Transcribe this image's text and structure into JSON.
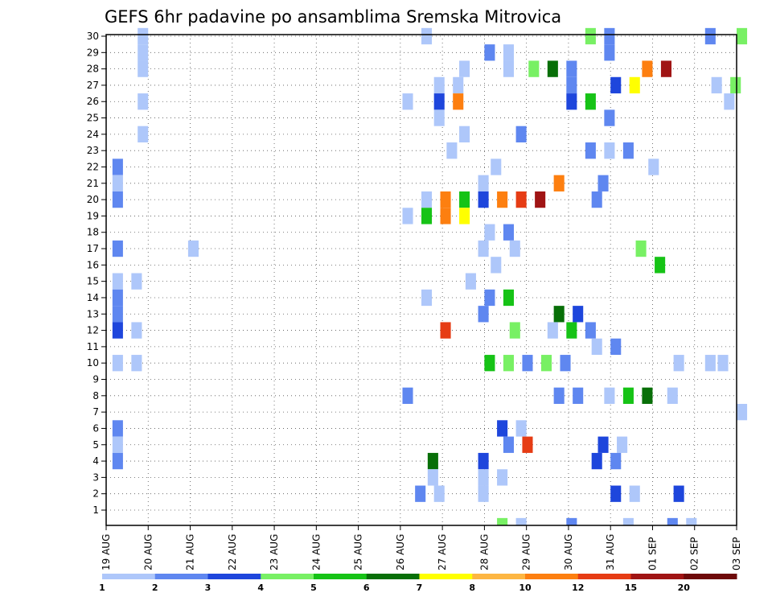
{
  "chart_data": {
    "type": "heatmap",
    "title": "GEFS 6hr padavine po ansamblima Sremska Mitrovica",
    "xlabel": "",
    "ylabel": "",
    "x_ticks": [
      "19 AUG",
      "20 AUG",
      "21 AUG",
      "22 AUG",
      "23 AUG",
      "24 AUG",
      "25 AUG",
      "26 AUG",
      "27 AUG",
      "28 AUG",
      "29 AUG",
      "30 AUG",
      "31 AUG",
      "01 SEP",
      "02 SEP",
      "03 SEP"
    ],
    "y_ticks": [
      "1",
      "2",
      "3",
      "4",
      "5",
      "6",
      "7",
      "8",
      "9",
      "10",
      "11",
      "12",
      "13",
      "14",
      "15",
      "16",
      "17",
      "18",
      "19",
      "20",
      "21",
      "22",
      "23",
      "24",
      "25",
      "26",
      "27",
      "28",
      "29",
      "30"
    ],
    "grid": true,
    "colorbar": {
      "levels": [
        "1",
        "2",
        "3",
        "4",
        "5",
        "6",
        "7",
        "8",
        "10",
        "12",
        "15",
        "20"
      ],
      "colors": [
        "#aec7fa",
        "#5f87f0",
        "#1e46dc",
        "#78f064",
        "#16c316",
        "#086f08",
        "#ffff00",
        "#fdb642",
        "#fd7f10",
        "#e63c14",
        "#a01414",
        "#6e0a0a"
      ]
    },
    "cells": [
      [
        0.25,
        30,
        1
      ],
      [
        4.75,
        30,
        2
      ],
      [
        5,
        30,
        4
      ],
      [
        2.5,
        30,
        1
      ],
      [
        3.8,
        30,
        4
      ],
      [
        3.95,
        30,
        2
      ],
      [
        0.25,
        29,
        1
      ],
      [
        3.0,
        29,
        2
      ],
      [
        3.15,
        29,
        1
      ],
      [
        3.95,
        29,
        2
      ],
      [
        0.25,
        28,
        1
      ],
      [
        2.8,
        28,
        1
      ],
      [
        3.15,
        28,
        1
      ],
      [
        3.35,
        28,
        4
      ],
      [
        3.5,
        28,
        6
      ],
      [
        3.65,
        28,
        2
      ],
      [
        4.25,
        28,
        9
      ],
      [
        4.4,
        28,
        11
      ],
      [
        2.6,
        27,
        1
      ],
      [
        2.75,
        27,
        1
      ],
      [
        3.65,
        27,
        2
      ],
      [
        4.0,
        27,
        3
      ],
      [
        4.15,
        27,
        7
      ],
      [
        4.8,
        27,
        1
      ],
      [
        4.95,
        27,
        4
      ],
      [
        0.25,
        26,
        1
      ],
      [
        2.35,
        26,
        1
      ],
      [
        2.6,
        26,
        3
      ],
      [
        2.75,
        26,
        9
      ],
      [
        3.65,
        26,
        3
      ],
      [
        3.8,
        26,
        5
      ],
      [
        4.9,
        26,
        1
      ],
      [
        2.6,
        25,
        1
      ],
      [
        3.95,
        25,
        2
      ],
      [
        0.25,
        24,
        1
      ],
      [
        2.8,
        24,
        1
      ],
      [
        3.25,
        24,
        2
      ],
      [
        2.7,
        23,
        1
      ],
      [
        3.8,
        23,
        2
      ],
      [
        3.95,
        23,
        1
      ],
      [
        4.1,
        23,
        2
      ],
      [
        0.05,
        22,
        2
      ],
      [
        3.05,
        22,
        1
      ],
      [
        4.3,
        22,
        1
      ],
      [
        0.05,
        21,
        1
      ],
      [
        2.95,
        21,
        1
      ],
      [
        3.55,
        21,
        9
      ],
      [
        3.9,
        21,
        2
      ],
      [
        0.05,
        20,
        2
      ],
      [
        2.5,
        20,
        1
      ],
      [
        2.65,
        20,
        9
      ],
      [
        2.8,
        20,
        5
      ],
      [
        2.95,
        20,
        3
      ],
      [
        3.1,
        20,
        9
      ],
      [
        3.25,
        20,
        10
      ],
      [
        3.4,
        20,
        11
      ],
      [
        3.85,
        20,
        2
      ],
      [
        2.35,
        19,
        1
      ],
      [
        2.5,
        19,
        5
      ],
      [
        2.65,
        19,
        9
      ],
      [
        2.8,
        19,
        7
      ],
      [
        3.0,
        18,
        1
      ],
      [
        3.15,
        18,
        2
      ],
      [
        0.05,
        17,
        2
      ],
      [
        0.65,
        17,
        1
      ],
      [
        2.95,
        17,
        1
      ],
      [
        3.2,
        17,
        1
      ],
      [
        4.2,
        17,
        4
      ],
      [
        4.35,
        16,
        5
      ],
      [
        3.05,
        16,
        1
      ],
      [
        0.05,
        15,
        1
      ],
      [
        0.2,
        15,
        1
      ],
      [
        2.85,
        15,
        1
      ],
      [
        0.05,
        14,
        2
      ],
      [
        2.5,
        14,
        1
      ],
      [
        3.0,
        14,
        2
      ],
      [
        3.15,
        14,
        5
      ],
      [
        0.05,
        13,
        2
      ],
      [
        2.95,
        13,
        2
      ],
      [
        3.55,
        13,
        6
      ],
      [
        3.7,
        13,
        3
      ],
      [
        0.05,
        12,
        3
      ],
      [
        0.2,
        12,
        1
      ],
      [
        2.65,
        12,
        10
      ],
      [
        3.2,
        12,
        4
      ],
      [
        3.5,
        12,
        1
      ],
      [
        3.65,
        12,
        5
      ],
      [
        3.8,
        12,
        2
      ],
      [
        3.85,
        11,
        1
      ],
      [
        4.0,
        11,
        2
      ],
      [
        0.05,
        10,
        1
      ],
      [
        0.2,
        10,
        1
      ],
      [
        3.0,
        10,
        5
      ],
      [
        3.15,
        10,
        4
      ],
      [
        3.3,
        10,
        2
      ],
      [
        3.45,
        10,
        4
      ],
      [
        3.6,
        10,
        2
      ],
      [
        4.5,
        10,
        1
      ],
      [
        4.75,
        10,
        1
      ],
      [
        4.85,
        10,
        1
      ],
      [
        2.35,
        8,
        2
      ],
      [
        3.55,
        8,
        2
      ],
      [
        3.7,
        8,
        2
      ],
      [
        3.95,
        8,
        1
      ],
      [
        4.1,
        8,
        5
      ],
      [
        4.25,
        8,
        6
      ],
      [
        4.45,
        8,
        1
      ],
      [
        5,
        7,
        1
      ],
      [
        0.05,
        6,
        2
      ],
      [
        3.1,
        6,
        3
      ],
      [
        3.25,
        6,
        1
      ],
      [
        0.05,
        5,
        1
      ],
      [
        3.15,
        5,
        2
      ],
      [
        3.3,
        5,
        10
      ],
      [
        3.9,
        5,
        3
      ],
      [
        4.05,
        5,
        1
      ],
      [
        0.05,
        4,
        2
      ],
      [
        2.55,
        4,
        6
      ],
      [
        2.95,
        4,
        3
      ],
      [
        3.85,
        4,
        3
      ],
      [
        4.0,
        4,
        2
      ],
      [
        2.55,
        3,
        1
      ],
      [
        2.95,
        3,
        1
      ],
      [
        3.1,
        3,
        1
      ],
      [
        2.45,
        2,
        2
      ],
      [
        2.6,
        2,
        1
      ],
      [
        2.95,
        2,
        1
      ],
      [
        4.0,
        2,
        3
      ],
      [
        4.15,
        2,
        1
      ],
      [
        4.5,
        2,
        3
      ],
      [
        3.1,
        0,
        4
      ],
      [
        3.25,
        0,
        1
      ],
      [
        3.65,
        0,
        2
      ],
      [
        4.1,
        0,
        1
      ],
      [
        4.45,
        0,
        2
      ],
      [
        4.6,
        0,
        1
      ]
    ]
  }
}
